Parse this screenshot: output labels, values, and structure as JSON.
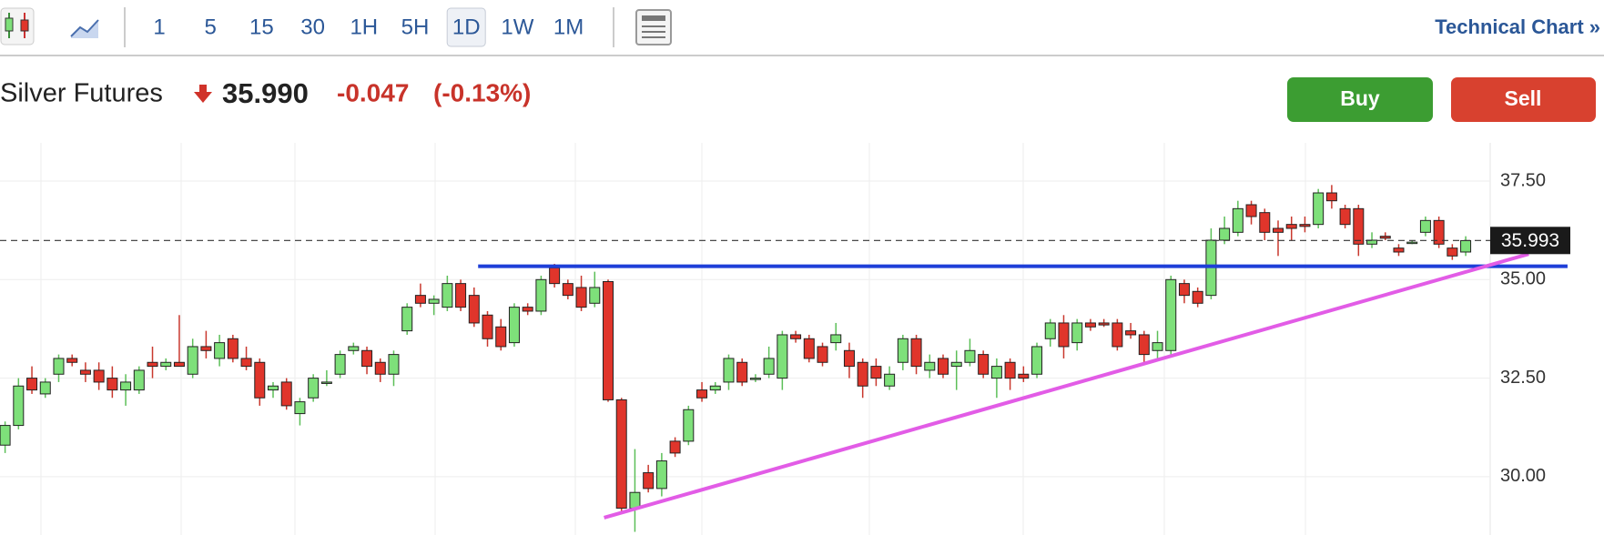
{
  "toolbar": {
    "intervals": [
      "1",
      "5",
      "15",
      "30",
      "1H",
      "5H",
      "1D",
      "1W",
      "1M"
    ],
    "selected": 6,
    "link": "Technical Chart »"
  },
  "quote": {
    "name": "Silver Futures",
    "last": "35.990",
    "change": "-0.047",
    "change_percent": "(-0.13%)"
  },
  "buttons": {
    "buy": "Buy",
    "sell": "Sell"
  },
  "chart_data": {
    "type": "candlestick",
    "open": [
      30.8,
      31.3,
      32.5,
      32.1,
      32.6,
      33.0,
      32.7,
      32.7,
      32.5,
      32.2,
      32.2,
      32.9,
      32.8,
      32.9,
      32.6,
      33.3,
      33.0,
      33.5,
      33.0,
      32.9,
      32.2,
      32.4,
      31.6,
      32.0,
      32.4,
      32.6,
      33.2,
      33.2,
      32.9,
      32.6,
      33.7,
      34.6,
      34.4,
      34.3,
      34.9,
      34.6,
      34.1,
      33.8,
      33.4,
      34.3,
      34.2,
      35.3,
      34.9,
      34.8,
      34.4,
      34.95,
      31.95,
      29.2,
      30.1,
      29.7,
      30.9,
      30.9,
      32.2,
      32.2,
      32.4,
      32.9,
      32.5,
      32.6,
      32.5,
      33.6,
      33.5,
      33.3,
      33.4,
      33.2,
      32.9,
      32.8,
      32.3,
      32.9,
      33.5,
      32.7,
      33.0,
      32.8,
      32.9,
      33.1,
      32.5,
      32.9,
      32.6,
      32.6,
      33.5,
      33.9,
      33.4,
      33.9,
      33.9,
      33.9,
      33.7,
      33.6,
      33.2,
      33.2,
      34.9,
      34.7,
      34.6,
      36.0,
      36.2,
      36.9,
      36.7,
      36.3,
      36.4,
      36.4,
      36.4,
      37.2,
      36.8,
      36.8,
      35.9,
      36.1,
      35.8,
      35.95,
      36.2,
      36.5,
      35.8,
      35.7
    ],
    "high": [
      31.4,
      32.5,
      32.8,
      32.5,
      33.1,
      33.1,
      32.9,
      32.9,
      32.8,
      32.6,
      32.8,
      33.3,
      33.0,
      34.1,
      33.5,
      33.7,
      33.6,
      33.6,
      33.3,
      33.0,
      32.4,
      32.5,
      32.0,
      32.6,
      32.7,
      33.2,
      33.4,
      33.3,
      33.0,
      33.2,
      34.4,
      34.9,
      34.6,
      35.1,
      35.0,
      34.8,
      34.2,
      34.0,
      34.4,
      34.4,
      35.1,
      35.4,
      35.0,
      35.1,
      35.2,
      35.0,
      32.0,
      30.7,
      30.3,
      30.6,
      31.0,
      31.8,
      32.4,
      32.4,
      33.1,
      33.0,
      32.6,
      33.3,
      33.7,
      33.7,
      33.6,
      33.4,
      33.9,
      33.4,
      33.0,
      33.0,
      32.8,
      33.6,
      33.6,
      33.1,
      33.1,
      33.2,
      33.5,
      33.2,
      33.0,
      33.0,
      32.8,
      33.4,
      34.0,
      34.1,
      34.0,
      34.0,
      34.0,
      34.0,
      33.9,
      33.7,
      33.7,
      35.1,
      35.0,
      34.8,
      36.3,
      36.6,
      37.0,
      37.0,
      36.8,
      36.5,
      36.6,
      36.6,
      37.3,
      37.4,
      36.9,
      36.9,
      36.2,
      36.2,
      35.9,
      36.0,
      36.6,
      36.6,
      35.9,
      36.1
    ],
    "low": [
      30.6,
      31.2,
      32.1,
      32.0,
      32.4,
      32.8,
      32.4,
      32.2,
      32.0,
      31.8,
      32.1,
      32.5,
      32.7,
      32.8,
      32.5,
      33.0,
      32.8,
      32.9,
      32.7,
      31.8,
      32.0,
      31.7,
      31.3,
      31.9,
      32.3,
      32.5,
      33.1,
      32.6,
      32.4,
      32.3,
      33.6,
      34.3,
      34.1,
      34.2,
      34.2,
      33.8,
      33.3,
      33.2,
      33.3,
      34.1,
      34.1,
      34.8,
      34.5,
      34.2,
      34.3,
      31.9,
      29.1,
      28.6,
      29.6,
      29.5,
      30.5,
      30.8,
      31.9,
      32.1,
      32.2,
      32.3,
      32.4,
      32.5,
      32.2,
      33.4,
      32.9,
      32.8,
      33.2,
      32.5,
      32.0,
      32.3,
      32.2,
      32.7,
      32.6,
      32.5,
      32.5,
      32.2,
      32.8,
      32.5,
      32.0,
      32.2,
      32.4,
      32.5,
      33.3,
      33.0,
      33.2,
      33.7,
      33.8,
      33.2,
      33.5,
      32.9,
      33.0,
      33.1,
      34.4,
      34.3,
      34.5,
      35.9,
      36.1,
      36.4,
      36.0,
      35.6,
      36.0,
      36.2,
      36.3,
      36.8,
      36.3,
      35.6,
      35.8,
      36.0,
      35.6,
      35.9,
      36.1,
      35.8,
      35.5,
      35.6
    ],
    "close": [
      31.3,
      32.3,
      32.2,
      32.4,
      33.0,
      32.9,
      32.6,
      32.4,
      32.2,
      32.4,
      32.7,
      32.8,
      32.9,
      32.8,
      33.3,
      33.2,
      33.4,
      33.0,
      32.8,
      32.0,
      32.3,
      31.8,
      31.9,
      32.5,
      32.4,
      33.1,
      33.3,
      32.8,
      32.6,
      33.1,
      34.3,
      34.4,
      34.5,
      34.9,
      34.3,
      33.9,
      33.5,
      33.3,
      34.3,
      34.2,
      35.0,
      34.9,
      34.6,
      34.3,
      34.8,
      31.95,
      29.2,
      29.6,
      29.7,
      30.4,
      30.6,
      31.7,
      32.0,
      32.3,
      33.0,
      32.4,
      32.5,
      33.0,
      33.6,
      33.5,
      33.0,
      32.9,
      33.6,
      32.8,
      32.3,
      32.5,
      32.6,
      33.5,
      32.8,
      32.9,
      32.6,
      32.9,
      33.2,
      32.6,
      32.8,
      32.5,
      32.5,
      33.3,
      33.9,
      33.3,
      33.9,
      33.8,
      33.85,
      33.3,
      33.6,
      33.1,
      33.4,
      35.0,
      34.6,
      34.4,
      36.0,
      36.3,
      36.8,
      36.6,
      36.2,
      36.2,
      36.3,
      36.35,
      37.2,
      37.0,
      36.4,
      35.9,
      36.0,
      36.05,
      35.7,
      35.95,
      36.5,
      35.9,
      35.6,
      35.99
    ],
    "up_color": "#7ee07a",
    "down_color": "#e0352b",
    "ylim": [
      28.52,
      38.47
    ],
    "yticks": [
      {
        "value": 30,
        "label": "30.00"
      },
      {
        "value": 32.5,
        "label": "32.50"
      },
      {
        "value": 35,
        "label": "35.00"
      },
      {
        "value": 37.5,
        "label": "37.50"
      }
    ],
    "grid": true,
    "last_price": 35.993,
    "lines": [
      {
        "color": "#1e3fd8",
        "start_index": 35.3,
        "start_price": 35.34,
        "end_index": 116.6,
        "end_price": 35.34
      },
      {
        "color": "#e25ce6",
        "start_index": 44.7,
        "start_price": 28.96,
        "end_index": 113.7,
        "end_price": 35.65
      }
    ]
  }
}
